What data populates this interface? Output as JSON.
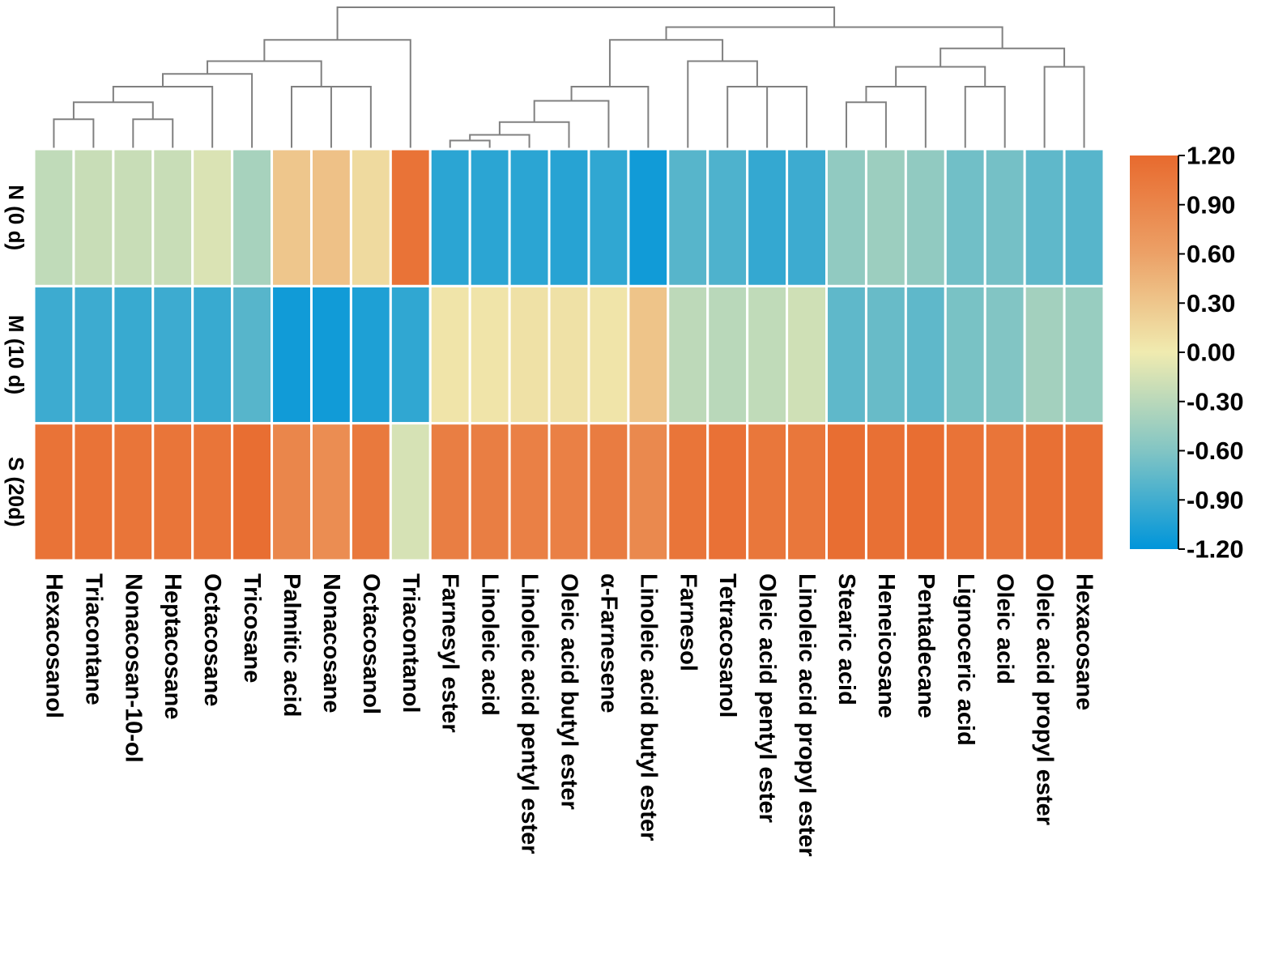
{
  "chart_data": {
    "type": "heatmap",
    "title": "",
    "rows": [
      "N (0 d)",
      "M (10 d)",
      "S (20d)"
    ],
    "columns": [
      "Hexacosanol",
      "Triacontane",
      "Nonacosan-10-ol",
      "Heptacosane",
      "Octacosane",
      "Tricosane",
      "Palmitic acid",
      "Nonacosane",
      "Octacosanol",
      "Triacontanol",
      "Farnesyl ester",
      "Linoleic acid",
      "Linoleic acid pentyl ester",
      "Oleic acid butyl ester",
      "α-Farnesene",
      "Linoleic acid butyl ester",
      "Farnesol",
      "Tetracosanol",
      "Oleic acid pentyl ester",
      "Linoleic acid propyl ester",
      "Stearic acid",
      "Heneicosane",
      "Pentadecane",
      "Lignoceric acid",
      "Oleic acid",
      "Oleic acid propyl ester",
      "Hexacosane"
    ],
    "values": [
      [
        -0.26,
        -0.22,
        -0.22,
        -0.22,
        -0.12,
        -0.4,
        0.3,
        0.34,
        0.14,
        1.1,
        -1.0,
        -1.0,
        -1.0,
        -1.02,
        -0.98,
        -1.12,
        -0.8,
        -0.84,
        -0.96,
        -0.92,
        -0.52,
        -0.46,
        -0.52,
        -0.68,
        -0.66,
        -0.76,
        -0.8
      ],
      [
        -0.92,
        -0.92,
        -0.94,
        -0.92,
        -0.94,
        -0.8,
        -1.12,
        -1.12,
        -1.06,
        -0.98,
        0.06,
        0.06,
        0.08,
        0.08,
        0.06,
        0.32,
        -0.28,
        -0.3,
        -0.26,
        -0.18,
        -0.76,
        -0.72,
        -0.76,
        -0.64,
        -0.6,
        -0.42,
        -0.48
      ],
      [
        1.1,
        1.1,
        1.08,
        1.08,
        1.08,
        1.16,
        0.9,
        0.82,
        1.04,
        -0.14,
        0.98,
        0.98,
        0.96,
        0.96,
        1.0,
        0.86,
        1.08,
        1.12,
        1.06,
        1.06,
        1.16,
        1.14,
        1.16,
        1.1,
        1.08,
        1.14,
        1.14
      ]
    ],
    "colorbar": {
      "min": -1.2,
      "max": 1.2,
      "ticks": [
        "1.20",
        "0.90",
        "0.60",
        "0.30",
        "0.00",
        "-0.30",
        "-0.60",
        "-0.90",
        "-1.20"
      ],
      "colors": {
        "low": "#0095da",
        "mid_low": "#82c5c4",
        "mid": "#f0ebb0",
        "mid_high": "#eca167",
        "high": "#e86a2e"
      }
    },
    "dendrogram": {
      "merges": [
        [
          0,
          1
        ],
        [
          2,
          3
        ],
        [
          27,
          28
        ],
        [
          4,
          29
        ],
        [
          5,
          30
        ],
        [
          7,
          8
        ],
        [
          6,
          32
        ],
        [
          31,
          33
        ],
        [
          9,
          34
        ],
        [
          10,
          11
        ],
        [
          36,
          12
        ],
        [
          37,
          13
        ],
        [
          38,
          14
        ],
        [
          39,
          15
        ],
        [
          18,
          19
        ],
        [
          17,
          41
        ],
        [
          16,
          42
        ],
        [
          40,
          43
        ],
        [
          20,
          21
        ],
        [
          45,
          22
        ],
        [
          23,
          24
        ],
        [
          46,
          47
        ],
        [
          25,
          26
        ],
        [
          48,
          49
        ],
        [
          44,
          50
        ],
        [
          35,
          51
        ]
      ],
      "heights": [
        0.21,
        0.21,
        0.33,
        0.44,
        0.53,
        0.44,
        0.44,
        0.62,
        0.77,
        0.06,
        0.1,
        0.19,
        0.34,
        0.44,
        0.44,
        0.44,
        0.62,
        0.77,
        0.33,
        0.44,
        0.44,
        0.58,
        0.58,
        0.71,
        0.86,
        1.0
      ],
      "line_color": "#808080"
    }
  }
}
